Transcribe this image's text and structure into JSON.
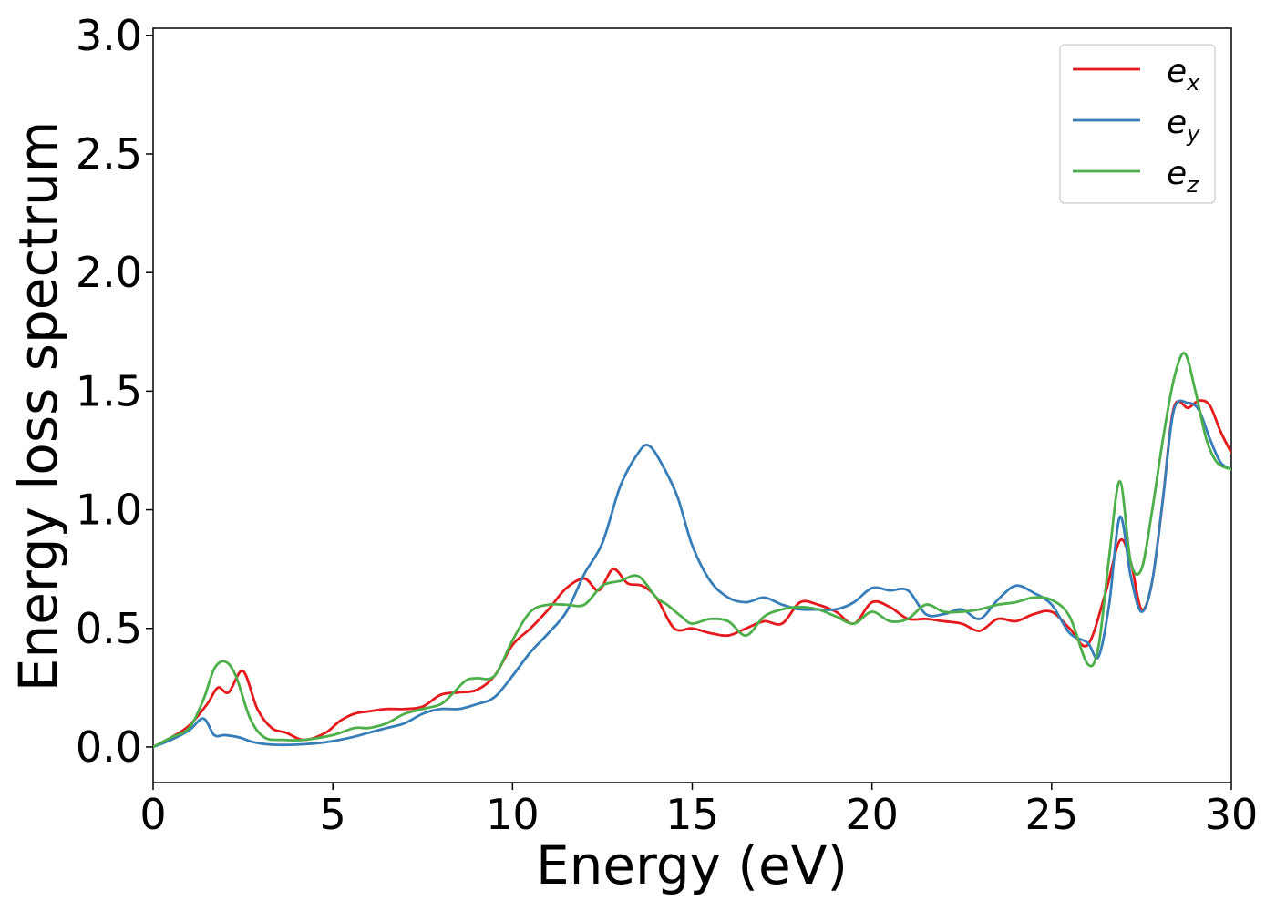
{
  "chart_data": {
    "type": "line",
    "title": "",
    "xlabel": "Energy (eV)",
    "ylabel": "Energy loss spectrum",
    "xlim": [
      0,
      30
    ],
    "ylim": [
      -0.15,
      3.03
    ],
    "xticks": [
      0,
      5,
      10,
      15,
      20,
      25,
      30
    ],
    "xtick_labels": [
      "0",
      "5",
      "10",
      "15",
      "20",
      "25",
      "30"
    ],
    "yticks": [
      0.0,
      0.5,
      1.0,
      1.5,
      2.0,
      2.5,
      3.0
    ],
    "ytick_labels": [
      "0.0",
      "0.5",
      "1.0",
      "1.5",
      "2.0",
      "2.5",
      "3.0"
    ],
    "grid": false,
    "legend_position": "top-right",
    "series": [
      {
        "name": "e_x",
        "legend_base": "e",
        "legend_sub": "x",
        "color": "#e41a1c",
        "x": [
          0,
          0.5,
          1.0,
          1.5,
          1.8,
          2.1,
          2.5,
          2.9,
          3.3,
          3.7,
          4.2,
          4.8,
          5.2,
          5.6,
          6.0,
          6.5,
          7.0,
          7.5,
          8.0,
          8.5,
          9.0,
          9.5,
          10.0,
          10.5,
          11.0,
          11.5,
          12.0,
          12.4,
          12.8,
          13.2,
          13.6,
          14.0,
          14.5,
          15.0,
          15.5,
          16.0,
          16.5,
          17.0,
          17.5,
          18.0,
          18.5,
          19.0,
          19.5,
          20.0,
          20.5,
          21.0,
          21.5,
          22.0,
          22.5,
          23.0,
          23.5,
          24.0,
          24.5,
          25.0,
          25.5,
          26.0,
          26.5,
          26.9,
          27.2,
          27.5,
          27.8,
          28.1,
          28.4,
          28.8,
          29.1,
          29.4,
          29.7,
          30.0
        ],
        "y": [
          0.0,
          0.04,
          0.09,
          0.18,
          0.25,
          0.23,
          0.32,
          0.16,
          0.08,
          0.06,
          0.03,
          0.06,
          0.11,
          0.14,
          0.15,
          0.16,
          0.16,
          0.17,
          0.22,
          0.23,
          0.24,
          0.3,
          0.43,
          0.5,
          0.58,
          0.67,
          0.71,
          0.66,
          0.75,
          0.69,
          0.68,
          0.63,
          0.5,
          0.5,
          0.48,
          0.47,
          0.5,
          0.53,
          0.52,
          0.61,
          0.6,
          0.57,
          0.52,
          0.61,
          0.59,
          0.54,
          0.54,
          0.53,
          0.52,
          0.49,
          0.54,
          0.53,
          0.56,
          0.57,
          0.5,
          0.43,
          0.65,
          0.87,
          0.78,
          0.58,
          0.7,
          1.05,
          1.43,
          1.43,
          1.46,
          1.44,
          1.33,
          1.24
        ]
      },
      {
        "name": "e_y",
        "legend_base": "e",
        "legend_sub": "y",
        "color": "#377eb8",
        "x": [
          0,
          0.5,
          1.0,
          1.4,
          1.7,
          2.0,
          2.4,
          2.8,
          3.3,
          4.0,
          4.8,
          5.5,
          6.0,
          6.5,
          7.0,
          7.5,
          8.0,
          8.5,
          9.0,
          9.5,
          10.0,
          10.5,
          11.0,
          11.5,
          12.0,
          12.5,
          13.0,
          13.5,
          13.8,
          14.2,
          14.6,
          15.0,
          15.5,
          16.0,
          16.5,
          17.0,
          17.5,
          18.0,
          18.5,
          19.0,
          19.5,
          20.0,
          20.5,
          21.0,
          21.5,
          22.0,
          22.5,
          23.0,
          23.5,
          24.0,
          24.5,
          25.0,
          25.5,
          26.0,
          26.3,
          26.6,
          26.9,
          27.2,
          27.5,
          27.8,
          28.1,
          28.4,
          28.8,
          29.1,
          29.4,
          29.7,
          30.0
        ],
        "y": [
          0.0,
          0.03,
          0.07,
          0.12,
          0.05,
          0.05,
          0.04,
          0.02,
          0.01,
          0.01,
          0.02,
          0.04,
          0.06,
          0.08,
          0.1,
          0.14,
          0.16,
          0.16,
          0.18,
          0.21,
          0.3,
          0.4,
          0.48,
          0.57,
          0.73,
          0.86,
          1.1,
          1.24,
          1.27,
          1.18,
          1.05,
          0.85,
          0.7,
          0.63,
          0.61,
          0.63,
          0.6,
          0.58,
          0.58,
          0.58,
          0.61,
          0.67,
          0.66,
          0.66,
          0.56,
          0.56,
          0.58,
          0.54,
          0.62,
          0.68,
          0.65,
          0.6,
          0.48,
          0.44,
          0.38,
          0.6,
          0.97,
          0.72,
          0.57,
          0.7,
          1.05,
          1.42,
          1.45,
          1.42,
          1.3,
          1.2,
          1.17
        ]
      },
      {
        "name": "e_z",
        "legend_base": "e",
        "legend_sub": "z",
        "color": "#4daf4a",
        "x": [
          0,
          0.5,
          1.0,
          1.4,
          1.7,
          2.0,
          2.3,
          2.7,
          3.1,
          3.6,
          4.2,
          5.0,
          5.6,
          6.0,
          6.5,
          7.0,
          7.5,
          8.0,
          8.3,
          8.7,
          9.0,
          9.5,
          10.0,
          10.5,
          11.0,
          11.5,
          12.0,
          12.5,
          13.0,
          13.5,
          14.0,
          14.3,
          14.7,
          15.0,
          15.5,
          16.0,
          16.5,
          17.0,
          17.5,
          18.0,
          18.5,
          19.0,
          19.5,
          20.0,
          20.5,
          21.0,
          21.5,
          22.0,
          22.5,
          23.0,
          23.5,
          24.0,
          24.5,
          25.0,
          25.5,
          26.0,
          26.3,
          26.6,
          26.9,
          27.2,
          27.5,
          27.8,
          28.1,
          28.4,
          28.7,
          29.0,
          29.3,
          29.6,
          30.0
        ],
        "y": [
          0.0,
          0.04,
          0.08,
          0.2,
          0.33,
          0.36,
          0.3,
          0.12,
          0.04,
          0.03,
          0.03,
          0.05,
          0.08,
          0.08,
          0.1,
          0.14,
          0.16,
          0.18,
          0.22,
          0.28,
          0.29,
          0.3,
          0.45,
          0.57,
          0.6,
          0.6,
          0.6,
          0.68,
          0.7,
          0.72,
          0.63,
          0.6,
          0.55,
          0.52,
          0.54,
          0.53,
          0.47,
          0.55,
          0.58,
          0.59,
          0.58,
          0.55,
          0.52,
          0.57,
          0.53,
          0.54,
          0.6,
          0.57,
          0.57,
          0.58,
          0.6,
          0.61,
          0.63,
          0.62,
          0.55,
          0.35,
          0.42,
          0.8,
          1.12,
          0.78,
          0.75,
          1.0,
          1.3,
          1.55,
          1.66,
          1.5,
          1.3,
          1.2,
          1.17
        ]
      }
    ]
  }
}
